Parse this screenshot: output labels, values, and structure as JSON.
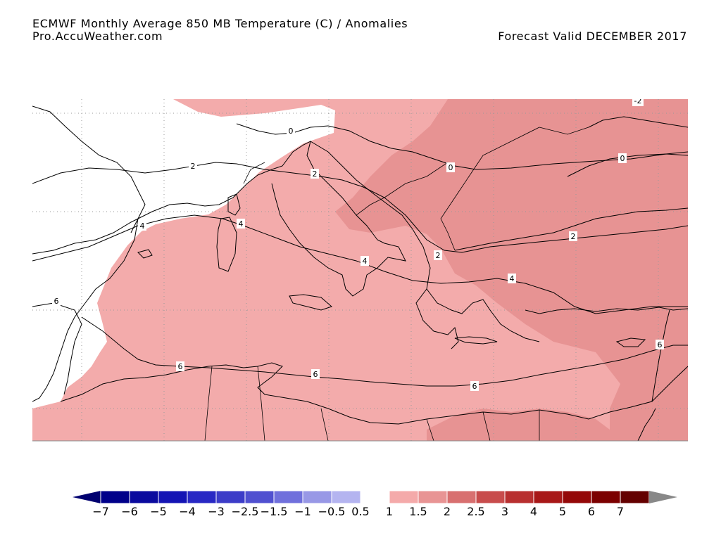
{
  "header": {
    "title": "ECMWF Monthly Average  850 MB Temperature (C) / Anomalies",
    "source": "Pro.AccuWeather.com",
    "valid": "Forecast Valid DECEMBER 2017"
  },
  "contour_labels": [
    "-2",
    "0",
    "2",
    "4",
    "6"
  ],
  "legend": {
    "ticks": [
      "−7",
      "−6",
      "−5",
      "−4",
      "−3",
      "−2.5",
      "−1.5",
      "−1",
      "−0.5",
      "0.5",
      "1",
      "1.5",
      "2",
      "2.5",
      "3",
      "4",
      "5",
      "6",
      "7"
    ],
    "colors": [
      "#00008a",
      "#0a0a9e",
      "#1414b4",
      "#2828c4",
      "#3c3cc8",
      "#5050d0",
      "#7070dc",
      "#9898e6",
      "#b4b4f0",
      "#ffffff",
      "#f4aaaa",
      "#e89494",
      "#d87070",
      "#c84c4c",
      "#b83030",
      "#a81818",
      "#940808",
      "#7c0000",
      "#640000"
    ],
    "under_color": "#000070",
    "over_color": "#888888"
  },
  "colors": {
    "coast": "#000000",
    "contour": "#000000",
    "grid": "#999999"
  }
}
